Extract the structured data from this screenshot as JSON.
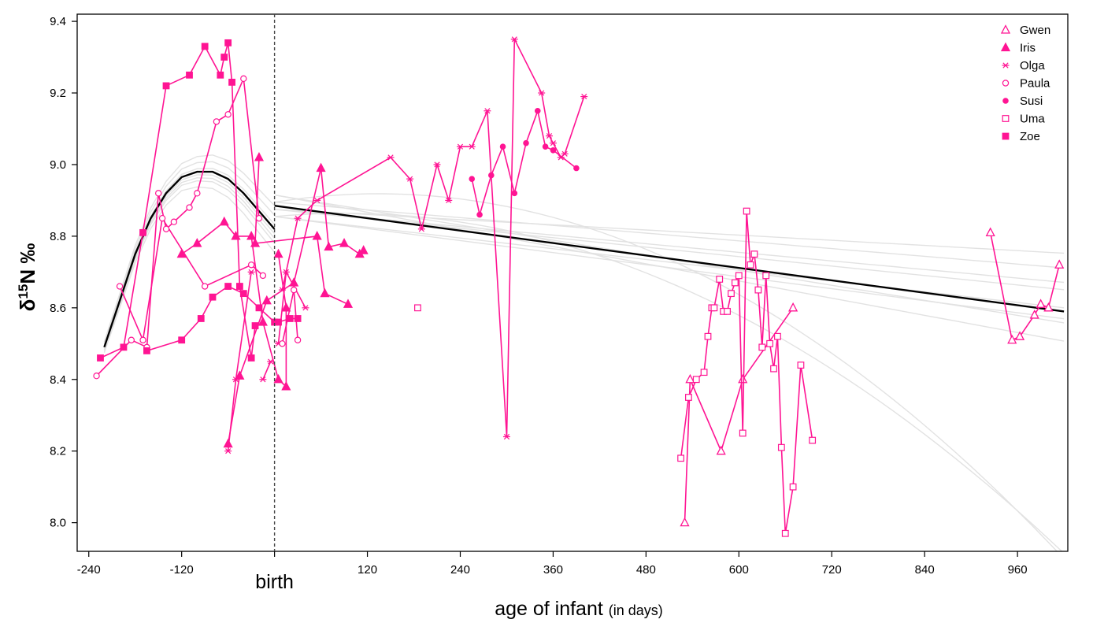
{
  "chart_data": {
    "type": "line",
    "xlabel": "age of infant",
    "xlabel_note": "(in days)",
    "ylabel_prefix": "δ",
    "ylabel_sup": "15",
    "ylabel_suffix": "N ‰",
    "xlim": [
      -255,
      1025
    ],
    "ylim": [
      7.92,
      9.42
    ],
    "x_ticks": [
      -240,
      -120,
      0,
      120,
      240,
      360,
      480,
      600,
      720,
      840,
      960
    ],
    "x_tick_labels": [
      "-240",
      "-120",
      "birth",
      "120",
      "240",
      "360",
      "480",
      "600",
      "720",
      "840",
      "960"
    ],
    "y_ticks": [
      8.0,
      8.2,
      8.4,
      8.6,
      8.8,
      9.0,
      9.2,
      9.4
    ],
    "y_tick_labels": [
      "8.0",
      "8.2",
      "8.4",
      "8.6",
      "8.8",
      "9.0",
      "9.2",
      "9.4"
    ],
    "vertical_reference_x": 0,
    "legend_position": "top-right",
    "color": "#ff1493",
    "fit_color": "#000000",
    "bootstrap_color": "#e2e2e2",
    "series": [
      {
        "name": "Gwen",
        "marker": "open-triangle",
        "x": [
          530,
          537,
          577,
          605,
          670,
          925,
          953,
          963,
          982,
          990,
          1000,
          1014
        ],
        "y": [
          8.0,
          8.4,
          8.2,
          8.4,
          8.6,
          8.81,
          8.51,
          8.52,
          8.58,
          8.61,
          8.6,
          8.72
        ]
      },
      {
        "name": "Iris",
        "marker": "filled-triangle",
        "x": [
          -120,
          -100,
          -65,
          -50,
          -30,
          -15,
          5,
          15,
          15,
          5,
          -60,
          -45,
          -10,
          25,
          60,
          70,
          90,
          110,
          115,
          -20,
          -25,
          55,
          65,
          95
        ],
        "y": [
          8.75,
          8.78,
          8.84,
          8.8,
          8.8,
          8.56,
          8.4,
          8.38,
          8.6,
          8.75,
          8.22,
          8.41,
          8.62,
          8.67,
          8.99,
          8.77,
          8.78,
          8.75,
          8.76,
          9.02,
          8.78,
          8.8,
          8.64,
          8.61
        ]
      },
      {
        "name": "Olga",
        "marker": "asterisk",
        "x": [
          -15,
          -5,
          5,
          15,
          40,
          -60,
          -50,
          -30,
          10,
          30,
          55,
          150,
          175,
          190,
          210,
          225,
          240,
          255,
          275,
          300,
          310,
          345,
          355,
          360,
          370,
          375,
          400
        ],
        "y": [
          8.4,
          8.45,
          8.5,
          8.7,
          8.6,
          8.2,
          8.4,
          8.7,
          8.65,
          8.85,
          8.9,
          9.02,
          8.96,
          8.82,
          9.0,
          8.9,
          9.05,
          9.05,
          9.15,
          8.24,
          9.35,
          9.2,
          9.08,
          9.06,
          9.02,
          9.03,
          9.19
        ]
      },
      {
        "name": "Paula",
        "marker": "open-circle",
        "x": [
          -230,
          -185,
          -165,
          -150,
          -140,
          -130,
          -110,
          -100,
          -75,
          -60,
          -40,
          -20,
          10,
          25,
          30,
          -200,
          -170,
          -145,
          -90,
          -30,
          -15
        ],
        "y": [
          8.41,
          8.51,
          8.49,
          8.92,
          8.82,
          8.84,
          8.88,
          8.92,
          9.12,
          9.14,
          9.24,
          8.85,
          8.5,
          8.65,
          8.51,
          8.66,
          8.51,
          8.85,
          8.66,
          8.72,
          8.69
        ],
        "note": "approximate readings"
      },
      {
        "name": "Susi",
        "marker": "filled-circle",
        "x": [
          255,
          265,
          280,
          295,
          310,
          325,
          340,
          350,
          360,
          390
        ],
        "y": [
          8.96,
          8.86,
          8.97,
          9.05,
          8.92,
          9.06,
          9.15,
          9.05,
          9.04,
          8.99
        ]
      },
      {
        "name": "Uma",
        "marker": "open-square",
        "x": [
          185,
          525,
          535,
          545,
          555,
          560,
          565,
          568,
          575,
          580,
          585,
          590,
          595,
          600,
          605,
          610,
          615,
          620,
          625,
          630,
          635,
          640,
          645,
          650,
          655,
          660,
          670,
          680,
          695
        ],
        "y": [
          8.6,
          8.18,
          8.35,
          8.4,
          8.42,
          8.52,
          8.6,
          8.6,
          8.68,
          8.59,
          8.59,
          8.64,
          8.67,
          8.69,
          8.25,
          8.87,
          8.72,
          8.75,
          8.65,
          8.49,
          8.69,
          8.5,
          8.43,
          8.52,
          8.21,
          7.97,
          8.1,
          8.44,
          8.23
        ],
        "note": "approximate readings"
      },
      {
        "name": "Zoe",
        "marker": "filled-square",
        "x": [
          -225,
          -195,
          -170,
          -140,
          -110,
          -90,
          -70,
          -65,
          -60,
          -55,
          -45,
          -30,
          -25,
          5,
          20,
          30,
          -165,
          -120,
          -95,
          -80,
          -60,
          -40,
          -20,
          0
        ],
        "y": [
          8.46,
          8.49,
          8.81,
          9.22,
          9.25,
          9.33,
          9.25,
          9.3,
          9.34,
          9.23,
          8.66,
          8.46,
          8.55,
          8.56,
          8.57,
          8.57,
          8.48,
          8.51,
          8.57,
          8.63,
          8.66,
          8.64,
          8.6,
          8.56
        ]
      }
    ],
    "fit_prenatal": {
      "x": [
        -220,
        -200,
        -180,
        -160,
        -140,
        -120,
        -100,
        -80,
        -60,
        -40,
        -20,
        0
      ],
      "y": [
        8.49,
        8.62,
        8.75,
        8.85,
        8.92,
        8.965,
        8.98,
        8.98,
        8.96,
        8.92,
        8.87,
        8.82
      ]
    },
    "fit_postnatal": {
      "x": [
        0,
        1020
      ],
      "y": [
        8.885,
        8.59
      ]
    }
  }
}
